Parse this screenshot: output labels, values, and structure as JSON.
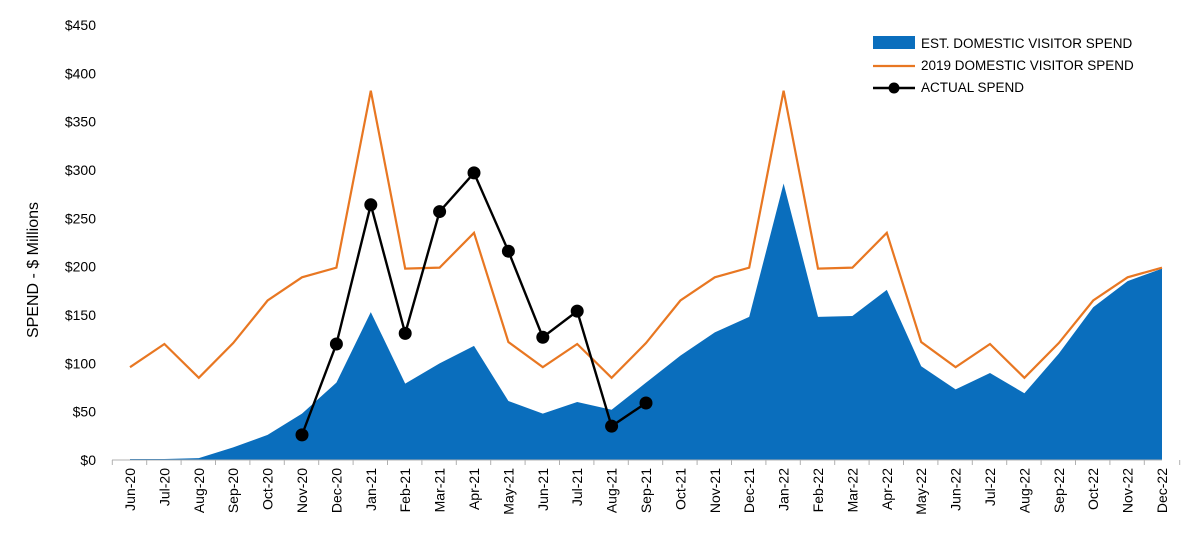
{
  "chart_data": {
    "type": "area",
    "ylabel": "SPEND - $ Millions",
    "xlabel": "",
    "title": "",
    "ylim": [
      0,
      450
    ],
    "yticks": [
      0,
      50,
      100,
      150,
      200,
      250,
      300,
      350,
      400,
      450
    ],
    "ytick_labels": [
      "$0",
      "$50",
      "$100",
      "$150",
      "$200",
      "$250",
      "$300",
      "$350",
      "$400",
      "$450"
    ],
    "categories": [
      "Jun-20",
      "Jul-20",
      "Aug-20",
      "Sep-20",
      "Oct-20",
      "Nov-20",
      "Dec-20",
      "Jan-21",
      "Feb-21",
      "Mar-21",
      "Apr-21",
      "May-21",
      "Jun-21",
      "Jul-21",
      "Aug-21",
      "Sep-21",
      "Oct-21",
      "Nov-21",
      "Dec-21",
      "Jan-22",
      "Feb-22",
      "Mar-22",
      "Apr-22",
      "May-22",
      "Jun-22",
      "Jul-22",
      "Aug-22",
      "Sep-22",
      "Oct-22",
      "Nov-22",
      "Dec-22"
    ],
    "grid": false,
    "legend_position": "top-right",
    "series": [
      {
        "name": "EST. DOMESTIC VISITOR SPEND",
        "kind": "area",
        "color": "#0A6EBD",
        "values": [
          1,
          1,
          2,
          13,
          26,
          48,
          80,
          153,
          79,
          100,
          118,
          61,
          48,
          60,
          52,
          80,
          108,
          132,
          148,
          286,
          148,
          149,
          176,
          97,
          73,
          90,
          69,
          110,
          158,
          185,
          198
        ]
      },
      {
        "name": "2019 DOMESTIC VISITOR SPEND",
        "kind": "line",
        "color": "#E87722",
        "values": [
          96,
          120,
          85,
          121,
          165,
          189,
          199,
          382,
          198,
          199,
          235,
          122,
          96,
          120,
          85,
          121,
          165,
          189,
          199,
          382,
          198,
          199,
          235,
          122,
          96,
          120,
          85,
          121,
          165,
          189,
          199
        ]
      },
      {
        "name": "ACTUAL SPEND",
        "kind": "line-markers",
        "color": "#000000",
        "values": [
          null,
          null,
          null,
          null,
          null,
          26,
          120,
          264,
          131,
          257,
          297,
          216,
          127,
          154,
          35,
          59,
          null,
          null,
          null,
          null,
          null,
          null,
          null,
          null,
          null,
          null,
          null,
          null,
          null,
          null,
          null
        ]
      }
    ]
  }
}
